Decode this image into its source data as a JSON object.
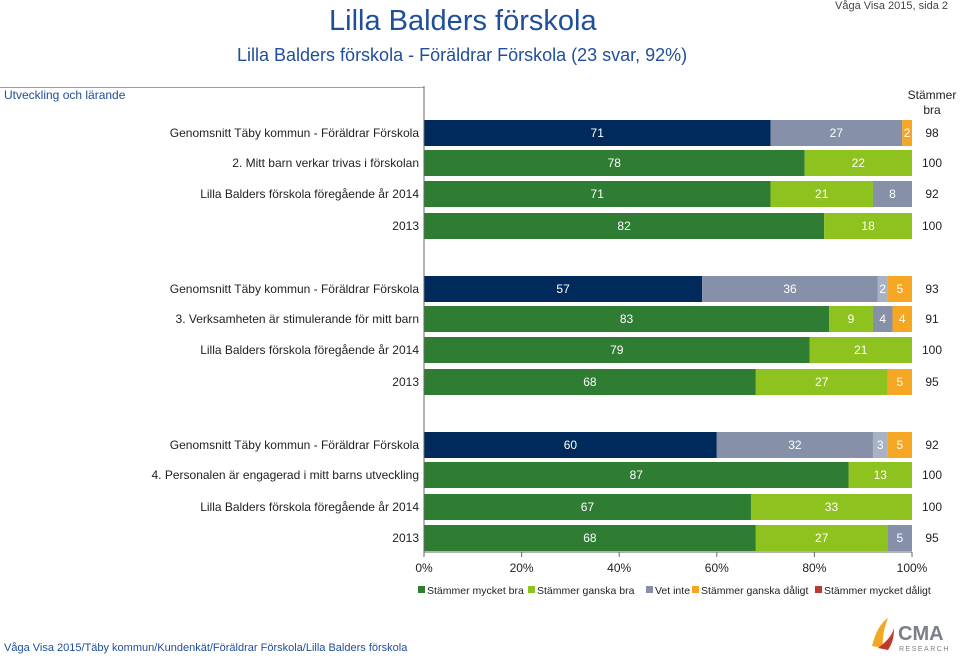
{
  "header": {
    "title": "Lilla Balders förskola",
    "subtitle": "Lilla Balders förskola - Föräldrar Förskola (23 svar, 92%)",
    "page_ref": "Våga Visa 2015, sida 2"
  },
  "section": {
    "label": "Utveckling och lärande"
  },
  "footer": {
    "text": "Våga Visa 2015/Täby kommun/Kundenkät/Föräldrar Förskola/Lilla Balders förskola"
  },
  "logo": {
    "text": "CMA",
    "subtext": "RESEARCH"
  },
  "colors": {
    "navy": "#002a5c",
    "dark_green": "#2e7d32",
    "light_green": "#8dc21f",
    "grey": "#8690a8",
    "orange": "#f5a623",
    "red": "#c0392b"
  },
  "chart_data": {
    "type": "bar",
    "orientation": "horizontal-stacked-100",
    "right_header": "Stämmer bra",
    "xlim": [
      0,
      100
    ],
    "x_ticks": [
      "0%",
      "20%",
      "40%",
      "60%",
      "80%",
      "100%"
    ],
    "legend_position": "bottom",
    "legend": [
      {
        "name": "Stämmer mycket bra",
        "color": "#2e7d32"
      },
      {
        "name": "Stämmer ganska bra",
        "color": "#8dc21f"
      },
      {
        "name": "Vet inte",
        "color": "#8690a8"
      },
      {
        "name": "Stämmer ganska dåligt",
        "color": "#f5a623"
      },
      {
        "name": "Stämmer mycket dåligt",
        "color": "#c0392b"
      }
    ],
    "groups": [
      {
        "question": "2. Mitt barn verkar trivas i förskolan",
        "rows": [
          {
            "label": "Genomsnitt Täby kommun - Föräldrar Förskola",
            "kind": "kommun",
            "segments": [
              71,
              27,
              0,
              2,
              0
            ],
            "display": [
              "71",
              "27",
              "0",
              "2",
              "0"
            ],
            "total": "98"
          },
          {
            "label": "2. Mitt barn verkar trivas i förskolan",
            "kind": "current",
            "segments": [
              78,
              22,
              0,
              0,
              0
            ],
            "display": [
              "78",
              "22",
              "0",
              "",
              ""
            ],
            "total": "100"
          },
          {
            "label": "Lilla Balders förskola föregående år 2014",
            "kind": "prev",
            "segments": [
              71,
              21,
              8,
              0,
              0
            ],
            "display": [
              "71",
              "21",
              "8",
              "0",
              ""
            ],
            "total": "92"
          },
          {
            "label": "2013",
            "kind": "prev",
            "segments": [
              82,
              18,
              0,
              0,
              0
            ],
            "display": [
              "82",
              "18",
              "0",
              "",
              ""
            ],
            "total": "100"
          }
        ]
      },
      {
        "question": "3. Verksamheten är stimulerande för mitt barn",
        "rows": [
          {
            "label": "Genomsnitt Täby kommun - Föräldrar Förskola",
            "kind": "kommun",
            "segments": [
              57,
              36,
              2,
              5,
              0
            ],
            "display": [
              "57",
              "36",
              "2",
              "5",
              "0"
            ],
            "total": "93"
          },
          {
            "label": "3. Verksamheten är stimulerande för mitt barn",
            "kind": "current",
            "segments": [
              83,
              9,
              4,
              4,
              0
            ],
            "display": [
              "83",
              "9",
              "4",
              "4",
              "0"
            ],
            "total": "91"
          },
          {
            "label": "Lilla Balders förskola föregående år 2014",
            "kind": "prev",
            "segments": [
              79,
              21,
              0,
              0,
              0
            ],
            "display": [
              "79",
              "21",
              "0",
              "",
              ""
            ],
            "total": "100"
          },
          {
            "label": "2013",
            "kind": "prev",
            "segments": [
              68,
              27,
              0,
              5,
              0
            ],
            "display": [
              "68",
              "27",
              "0",
              "5",
              "0"
            ],
            "total": "95"
          }
        ]
      },
      {
        "question": "4. Personalen är engagerad i mitt barns utveckling",
        "rows": [
          {
            "label": "Genomsnitt Täby kommun - Föräldrar Förskola",
            "kind": "kommun",
            "segments": [
              60,
              32,
              3,
              5,
              0
            ],
            "display": [
              "60",
              "32",
              "3",
              "5",
              "0"
            ],
            "total": "92"
          },
          {
            "label": "4. Personalen är engagerad i mitt barns utveckling",
            "kind": "current",
            "segments": [
              87,
              13,
              0,
              0,
              0
            ],
            "display": [
              "87",
              "13",
              "0",
              "",
              ""
            ],
            "total": "100"
          },
          {
            "label": "Lilla Balders förskola föregående år 2014",
            "kind": "prev",
            "segments": [
              67,
              33,
              0,
              0,
              0
            ],
            "display": [
              "67",
              "33",
              "0",
              "",
              ""
            ],
            "total": "100"
          },
          {
            "label": "2013",
            "kind": "prev",
            "segments": [
              68,
              27,
              5,
              0,
              0
            ],
            "display": [
              "68",
              "27",
              "5",
              "0",
              ""
            ],
            "total": "95"
          }
        ]
      }
    ]
  }
}
